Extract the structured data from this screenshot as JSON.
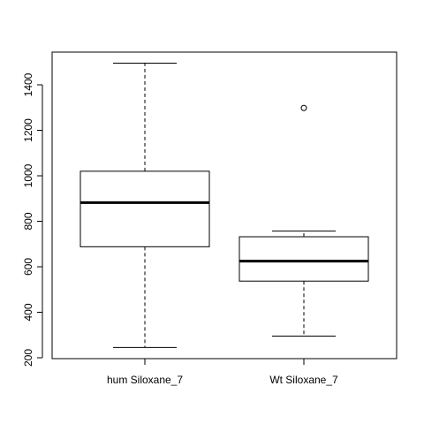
{
  "chart_data": {
    "type": "boxplot",
    "title": "",
    "xlabel": "",
    "ylabel": "",
    "ylim": [
      200,
      1400
    ],
    "yticks": [
      200,
      400,
      600,
      800,
      1000,
      1200,
      1400
    ],
    "grid": false,
    "categories": [
      "hum Siloxane_7",
      "Wt Siloxane_7"
    ],
    "boxes": [
      {
        "label": "hum Siloxane_7",
        "whisker_low": 245,
        "q1": 688,
        "median": 882,
        "q3": 1020,
        "whisker_high": 1495,
        "outliers": []
      },
      {
        "label": "Wt Siloxane_7",
        "whisker_low": 295,
        "q1": 537,
        "median": 625,
        "q3": 732,
        "whisker_high": 757,
        "outliers": [
          1298
        ]
      }
    ]
  }
}
